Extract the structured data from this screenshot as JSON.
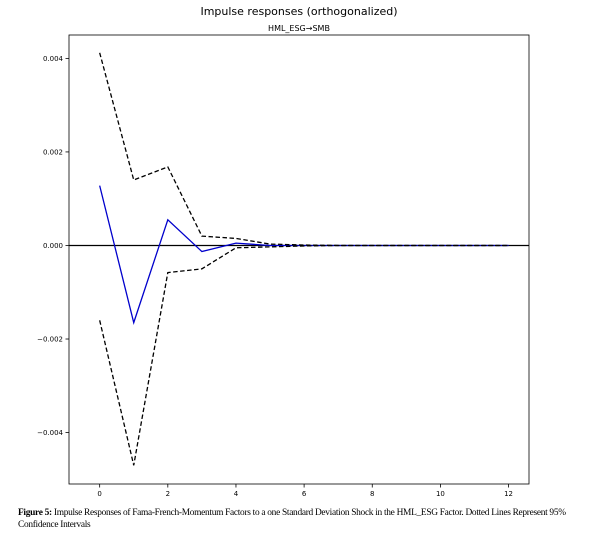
{
  "chart_data": {
    "type": "line",
    "title": "Impulse responses (orthogonalized)",
    "subtitle": "HML_ESG→SMB",
    "xlim": [
      -0.9,
      12.6
    ],
    "ylim": [
      -0.0051,
      0.0045
    ],
    "x_ticks": [
      0,
      2,
      4,
      6,
      8,
      10,
      12
    ],
    "y_ticks": [
      {
        "value": 0.004,
        "label": "0.004"
      },
      {
        "value": 0.002,
        "label": "0.002"
      },
      {
        "value": 0.0,
        "label": "0.000"
      },
      {
        "value": -0.002,
        "label": "−0.002"
      },
      {
        "value": -0.004,
        "label": "−0.004"
      }
    ],
    "x": [
      0,
      1,
      2,
      3,
      4,
      5,
      6,
      7,
      8,
      9,
      10,
      11,
      12
    ],
    "series": [
      {
        "style": "solid",
        "color": "#0000cc",
        "values": [
          0.00128,
          -0.00165,
          0.00055,
          -0.00013,
          5e-05,
          0.0,
          0.0,
          0.0,
          0.0,
          0.0,
          0.0,
          0.0,
          0.0
        ]
      },
      {
        "style": "dashed",
        "color": "#000000",
        "values": [
          0.00412,
          0.0014,
          0.00168,
          0.0002,
          0.00015,
          3e-05,
          1e-05,
          0.0,
          0.0,
          0.0,
          0.0,
          0.0,
          0.0
        ]
      },
      {
        "style": "dashed",
        "color": "#000000",
        "values": [
          -0.0016,
          -0.0047,
          -0.00058,
          -0.0005,
          -5e-05,
          -3e-05,
          -1e-05,
          0.0,
          0.0,
          0.0,
          0.0,
          0.0,
          0.0
        ]
      }
    ],
    "zero_line": true,
    "grid": false
  },
  "caption": {
    "label": "Figure 5:",
    "text": " Impulse Responses of Fama-French-Momentum Factors to a one Standard Deviation Shock in the HML_ESG Factor. Dotted Lines Represent 95% Confidence Intervals"
  }
}
